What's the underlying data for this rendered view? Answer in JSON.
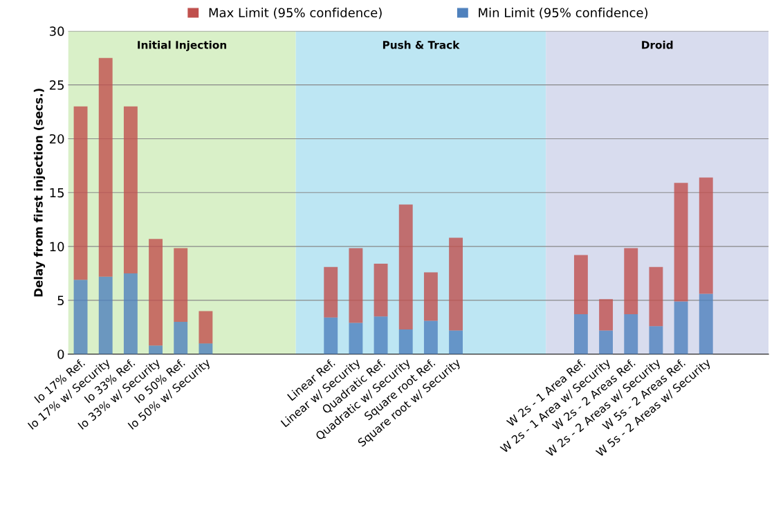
{
  "chart_data": {
    "type": "bar",
    "stacked": true,
    "ylabel": "Delay from first injection (secs.)",
    "categories": [
      "Io 17% Ref.",
      "Io 17% w/ Security",
      "Io 33% Ref.",
      "Io 33% w/ Security",
      "Io 50% Ref.",
      "Io 50% w/ Security",
      null,
      null,
      null,
      null,
      "Linear Ref.",
      "Linear w/ Security",
      "Quadratic Ref.",
      "Quadratic w/ Security",
      "Square root Ref.",
      "Square root w/ Security",
      null,
      null,
      null,
      null,
      "W 2s - 1 Area Ref.",
      "W 2s - 1 Area w/ Security",
      "W 2s - 2 Areas Ref.",
      "W 2s - 2 Areas w/ Security",
      "W 5s - 2 Areas Ref.",
      "W 5s - 2 Areas w/ Security",
      null,
      null
    ],
    "series": [
      {
        "name": "Min Limit (95% confidence)",
        "color": "#4f81bd",
        "values": [
          6.9,
          7.2,
          7.5,
          0.8,
          3.0,
          1.0,
          null,
          null,
          null,
          null,
          3.4,
          2.9,
          3.5,
          2.3,
          3.1,
          2.2,
          null,
          null,
          null,
          null,
          3.7,
          2.2,
          3.7,
          2.6,
          4.9,
          5.6,
          null,
          null
        ]
      },
      {
        "name": "Max Limit (95% confidence)",
        "color": "#c0504d",
        "values": [
          16.1,
          20.3,
          15.5,
          9.9,
          6.85,
          3.0,
          null,
          null,
          null,
          null,
          4.7,
          6.95,
          4.9,
          11.6,
          4.5,
          8.6,
          null,
          null,
          null,
          null,
          5.5,
          2.9,
          6.15,
          5.5,
          11.0,
          10.8,
          null,
          null
        ]
      }
    ],
    "ylim": [
      0,
      30
    ],
    "yticks": [
      0,
      5,
      10,
      15,
      20,
      25,
      30
    ],
    "grid": "y",
    "legend": "top",
    "annotations": [
      "Initial Injection",
      "Push & Track",
      "Droid"
    ]
  }
}
